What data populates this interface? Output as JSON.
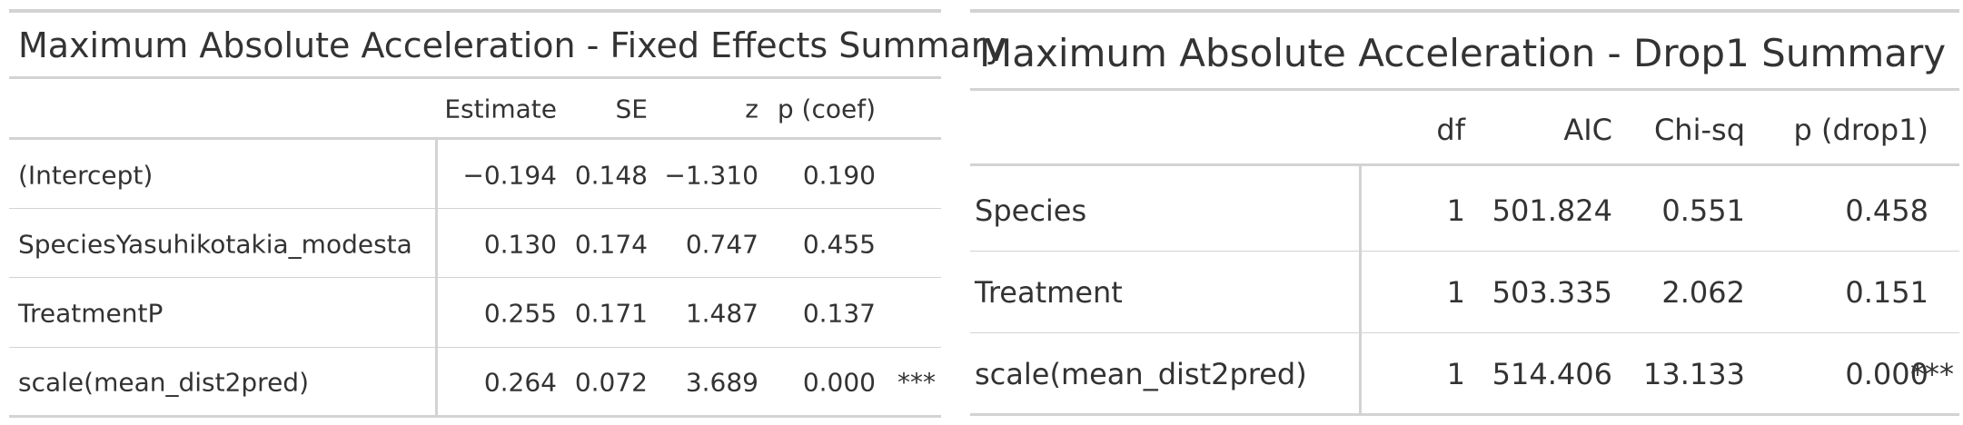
{
  "tables": [
    {
      "title": "Maximum Absolute Acceleration - Fixed Effects Summary",
      "columns": [
        "Estimate",
        "SE",
        "z",
        "p (coef)",
        ""
      ],
      "rows": [
        {
          "term": "(Intercept)",
          "values": [
            "−0.194",
            "0.148",
            "−1.310",
            "0.190",
            ""
          ]
        },
        {
          "term": "SpeciesYasuhikotakia_modesta",
          "values": [
            "0.130",
            "0.174",
            "0.747",
            "0.455",
            ""
          ]
        },
        {
          "term": "TreatmentP",
          "values": [
            "0.255",
            "0.171",
            "1.487",
            "0.137",
            ""
          ]
        },
        {
          "term": "scale(mean_dist2pred)",
          "values": [
            "0.264",
            "0.072",
            "3.689",
            "0.000",
            "***"
          ]
        }
      ]
    },
    {
      "title": "Maximum Absolute Acceleration - Drop1 Summary",
      "columns": [
        "df",
        "AIC",
        "Chi-sq",
        "p (drop1)",
        ""
      ],
      "rows": [
        {
          "term": "Species",
          "values": [
            "1",
            "501.824",
            "0.551",
            "0.458",
            ""
          ]
        },
        {
          "term": "Treatment",
          "values": [
            "1",
            "503.335",
            "2.062",
            "0.151",
            ""
          ]
        },
        {
          "term": "scale(mean_dist2pred)",
          "values": [
            "1",
            "514.406",
            "13.133",
            "0.000",
            "***"
          ]
        }
      ]
    }
  ]
}
